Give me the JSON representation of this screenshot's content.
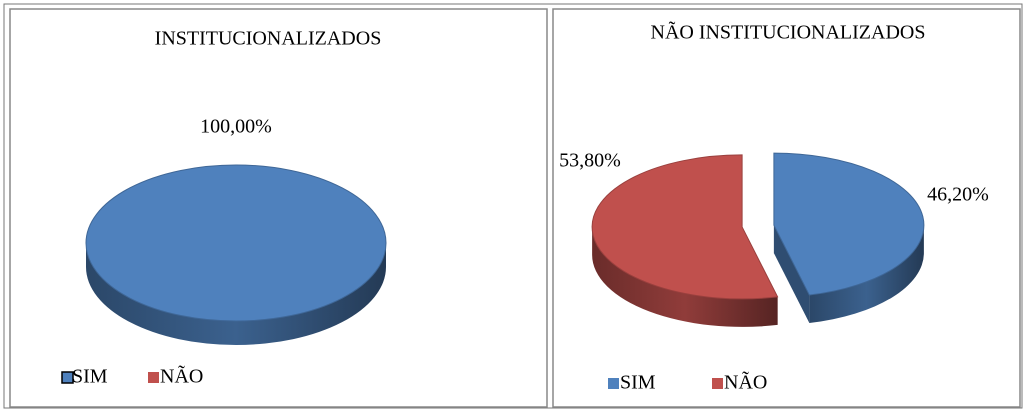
{
  "chart_data": [
    {
      "type": "pie3d",
      "title": "INSTITUCIONALIZADOS",
      "categories": [
        "SIM",
        "NÃO"
      ],
      "values": [
        100,
        0
      ],
      "value_labels": [
        "100,00%",
        null
      ],
      "colors": [
        "#4f81bd",
        "#c0504d"
      ],
      "legend": "bottom"
    },
    {
      "type": "pie3d",
      "title": "NÃO INSTITUCIONALIZADOS",
      "categories": [
        "SIM",
        "NÃO"
      ],
      "values": [
        46.2,
        53.8
      ],
      "value_labels": [
        "46,20%",
        "53,80%"
      ],
      "colors": [
        "#4f81bd",
        "#c0504d"
      ],
      "legend": "bottom",
      "exploded": true
    }
  ]
}
